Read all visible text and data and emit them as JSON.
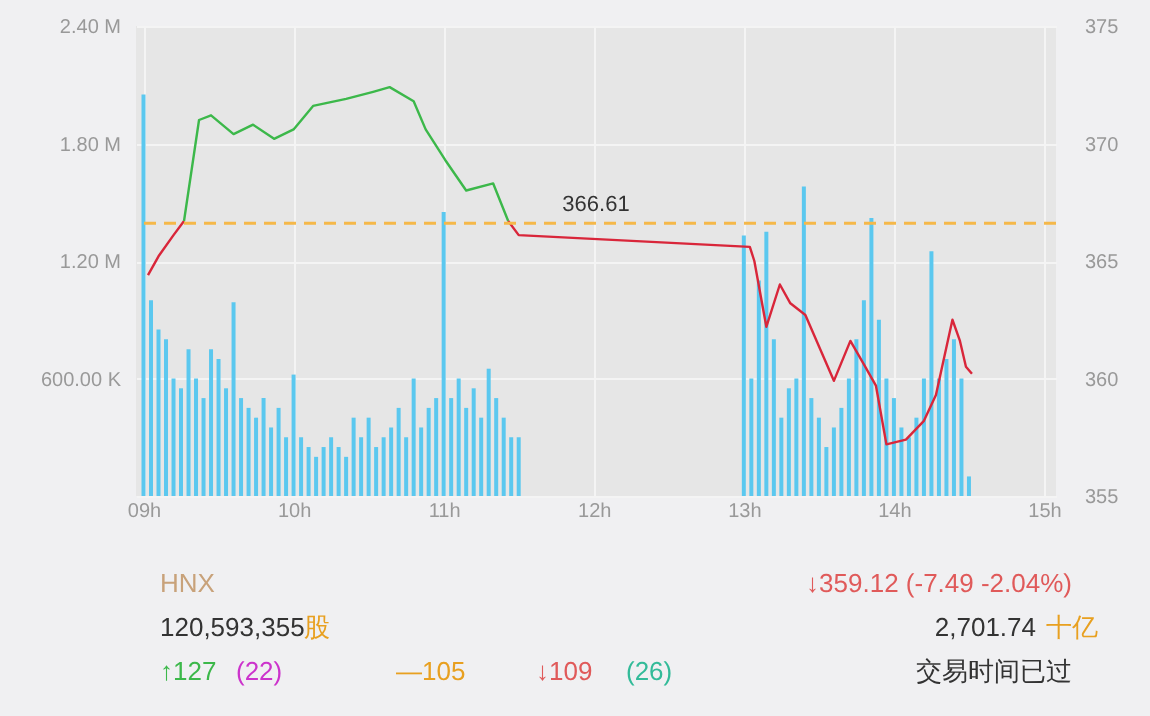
{
  "chart_data": {
    "type": "bar",
    "xlim": [
      8.95,
      15.08
    ],
    "xticks": [
      {
        "value": 9,
        "label": "09h"
      },
      {
        "value": 10,
        "label": "10h"
      },
      {
        "value": 11,
        "label": "11h"
      },
      {
        "value": 12,
        "label": "12h"
      },
      {
        "value": 13,
        "label": "13h"
      },
      {
        "value": 14,
        "label": "14h"
      },
      {
        "value": 15,
        "label": "15h"
      }
    ],
    "ylim": [
      0,
      2400000
    ],
    "yticks": [
      {
        "value": 0,
        "label": null
      },
      {
        "value": 600000,
        "label": "600.00 K"
      },
      {
        "value": 1200000,
        "label": "1.20 M"
      },
      {
        "value": 1800000,
        "label": "1.80 M"
      },
      {
        "value": 2400000,
        "label": "2.40 M"
      }
    ],
    "y2lim": [
      355,
      375
    ],
    "y2ticks": [
      355,
      360,
      365,
      370,
      375
    ],
    "grid": true,
    "series": [
      {
        "color": "#5bc8ef",
        "x": [
          9.0,
          9.05,
          9.1,
          9.15,
          9.2,
          9.25,
          9.3,
          9.35,
          9.4,
          9.45,
          9.5,
          9.55,
          9.6,
          9.65,
          9.7,
          9.75,
          9.8,
          9.85,
          9.9,
          9.95,
          10.0,
          10.05,
          10.1,
          10.15,
          10.2,
          10.25,
          10.3,
          10.35,
          10.4,
          10.45,
          10.5,
          10.55,
          10.6,
          10.65,
          10.7,
          10.75,
          10.8,
          10.85,
          10.9,
          10.95,
          11.0,
          11.05,
          11.1,
          11.15,
          11.2,
          11.25,
          11.3,
          11.35,
          11.4,
          11.45,
          11.5,
          13.0,
          13.05,
          13.1,
          13.15,
          13.2,
          13.25,
          13.3,
          13.35,
          13.4,
          13.45,
          13.5,
          13.55,
          13.6,
          13.65,
          13.7,
          13.75,
          13.8,
          13.85,
          13.9,
          13.95,
          14.0,
          14.05,
          14.1,
          14.15,
          14.2,
          14.25,
          14.3,
          14.35,
          14.4,
          14.45,
          14.5
        ],
        "values": [
          2050000,
          1000000,
          850000,
          800000,
          600000,
          550000,
          750000,
          600000,
          500000,
          750000,
          700000,
          550000,
          990000,
          500000,
          450000,
          400000,
          500000,
          350000,
          450000,
          300000,
          620000,
          300000,
          250000,
          200000,
          250000,
          300000,
          250000,
          200000,
          400000,
          300000,
          400000,
          250000,
          300000,
          350000,
          450000,
          300000,
          600000,
          350000,
          450000,
          500000,
          1450000,
          500000,
          600000,
          450000,
          550000,
          400000,
          650000,
          500000,
          400000,
          300000,
          300000,
          1330000,
          600000,
          1100000,
          1350000,
          800000,
          400000,
          550000,
          600000,
          1580000,
          500000,
          400000,
          250000,
          350000,
          450000,
          600000,
          800000,
          1000000,
          1420000,
          900000,
          600000,
          500000,
          350000,
          300000,
          400000,
          600000,
          1250000,
          600000,
          700000,
          800000,
          600000,
          100000
        ]
      },
      {
        "type": "line",
        "axis": "y2",
        "color": "#d9263a",
        "x": [
          9.03,
          9.1,
          9.2,
          9.27
        ],
        "values": [
          364.4,
          365.2,
          366.1,
          366.7
        ]
      },
      {
        "type": "line",
        "axis": "y2",
        "color": "#3cb84a",
        "x": [
          9.27,
          9.37,
          9.45,
          9.6,
          9.73,
          9.87,
          10.0,
          10.13,
          10.35,
          10.53,
          10.64,
          10.8,
          10.88,
          11.01,
          11.15,
          11.33,
          11.43
        ],
        "values": [
          366.7,
          371.0,
          371.2,
          370.4,
          370.8,
          370.2,
          370.6,
          371.6,
          371.9,
          372.2,
          372.4,
          371.8,
          370.6,
          369.3,
          368.0,
          368.3,
          366.7
        ]
      },
      {
        "type": "line",
        "axis": "y2",
        "color": "#d9263a",
        "x": [
          11.43,
          11.5,
          13.04,
          13.07,
          13.15,
          13.24,
          13.31,
          13.41,
          13.6,
          13.71,
          13.8,
          13.88,
          13.95,
          14.08,
          14.2,
          14.28,
          14.39,
          14.44,
          14.48,
          14.52
        ],
        "values": [
          366.7,
          366.1,
          365.6,
          365.0,
          362.2,
          364.0,
          363.2,
          362.7,
          359.9,
          361.6,
          360.6,
          359.7,
          357.2,
          357.4,
          358.2,
          359.3,
          362.5,
          361.6,
          360.5,
          360.2
        ]
      }
    ],
    "ref_lines": [
      {
        "axis": "y2",
        "value": 366.61,
        "label": "366.61",
        "color": "#f5b849",
        "line_style": "dashed"
      }
    ],
    "annotations": [
      "HNX",
      "↓359.12 (-7.49 -2.04%)",
      "120,593,355",
      "股",
      "2,701.74",
      "十亿",
      "↑127",
      "(22)",
      "—105",
      "↓109",
      "(26)",
      "交易时间已过"
    ]
  }
}
